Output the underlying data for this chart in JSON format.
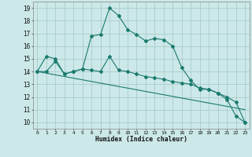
{
  "xlabel": "Humidex (Indice chaleur)",
  "bg_color": "#cce8e8",
  "grid_color": "#aacccc",
  "line_color": "#1a7a6e",
  "xlim": [
    -0.5,
    23.5
  ],
  "ylim": [
    9.5,
    19.5
  ],
  "xticks": [
    0,
    1,
    2,
    3,
    4,
    5,
    6,
    7,
    8,
    9,
    10,
    11,
    12,
    13,
    14,
    15,
    16,
    17,
    18,
    19,
    20,
    21,
    22,
    23
  ],
  "yticks": [
    10,
    11,
    12,
    13,
    14,
    15,
    16,
    17,
    18,
    19
  ],
  "series1_x": [
    0,
    1,
    2,
    3,
    4,
    5,
    6,
    7,
    8,
    9,
    10,
    11,
    12,
    13,
    14,
    15,
    16,
    17,
    18,
    19,
    20,
    21,
    22,
    23
  ],
  "series1_y": [
    14.0,
    15.2,
    15.0,
    13.8,
    14.0,
    14.2,
    16.8,
    16.9,
    19.0,
    18.4,
    17.3,
    16.9,
    16.4,
    16.6,
    16.5,
    16.0,
    14.3,
    13.3,
    12.6,
    12.6,
    12.3,
    11.8,
    10.5,
    10.0
  ],
  "series2_x": [
    0,
    1,
    2,
    3,
    4,
    5,
    6,
    7,
    8,
    9,
    10,
    11,
    12,
    13,
    14,
    15,
    16,
    17,
    18,
    19,
    20,
    21,
    22,
    23
  ],
  "series2_y": [
    14.0,
    14.0,
    14.8,
    13.8,
    14.0,
    14.2,
    14.1,
    14.0,
    15.2,
    14.1,
    14.0,
    13.8,
    13.6,
    13.5,
    13.4,
    13.2,
    13.1,
    13.0,
    12.7,
    12.6,
    12.3,
    12.0,
    11.6,
    10.0
  ],
  "series3_x": [
    0,
    23
  ],
  "series3_y": [
    14.0,
    11.0
  ]
}
